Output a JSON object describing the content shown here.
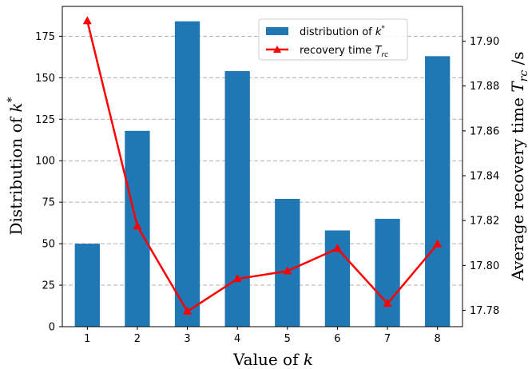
{
  "chart_data": {
    "type": "bar+line",
    "categories": [
      "1",
      "2",
      "3",
      "4",
      "5",
      "6",
      "7",
      "8"
    ],
    "series": [
      {
        "name": "distribution of k*",
        "type": "bar",
        "axis": "left",
        "color": "#1f77b4",
        "values": [
          50,
          118,
          184,
          154,
          77,
          58,
          65,
          163
        ]
      },
      {
        "name": "recovery time T_rc",
        "type": "line",
        "axis": "right",
        "color": "#ff0000",
        "marker": "triangle-up",
        "values": [
          17.909,
          17.8175,
          17.7795,
          17.794,
          17.7975,
          17.8075,
          17.783,
          17.8095
        ]
      }
    ],
    "xlabel": {
      "prefix": "Value of ",
      "var": "k"
    },
    "ylabel_left": {
      "prefix": "Distribution of ",
      "var": "k",
      "sup": "*"
    },
    "ylabel_right": {
      "prefix": "Average recovery time ",
      "var": "T",
      "sub": "rc",
      "suffix": " /s"
    },
    "ylim_left": [
      0,
      193
    ],
    "ylim_right": [
      17.7727,
      17.9155
    ],
    "yticks_left": [
      "0",
      "25",
      "50",
      "75",
      "100",
      "125",
      "150",
      "175"
    ],
    "yticks_right": [
      "17.78",
      "17.80",
      "17.82",
      "17.84",
      "17.86",
      "17.88",
      "17.90"
    ],
    "grid": "horizontal dashed",
    "legend": {
      "placement": "top-right",
      "entries": [
        {
          "prefix": "distribution of ",
          "var": "k",
          "sup": "*"
        },
        {
          "prefix": "recovery time ",
          "var": "T",
          "sub": "rc"
        }
      ]
    }
  }
}
